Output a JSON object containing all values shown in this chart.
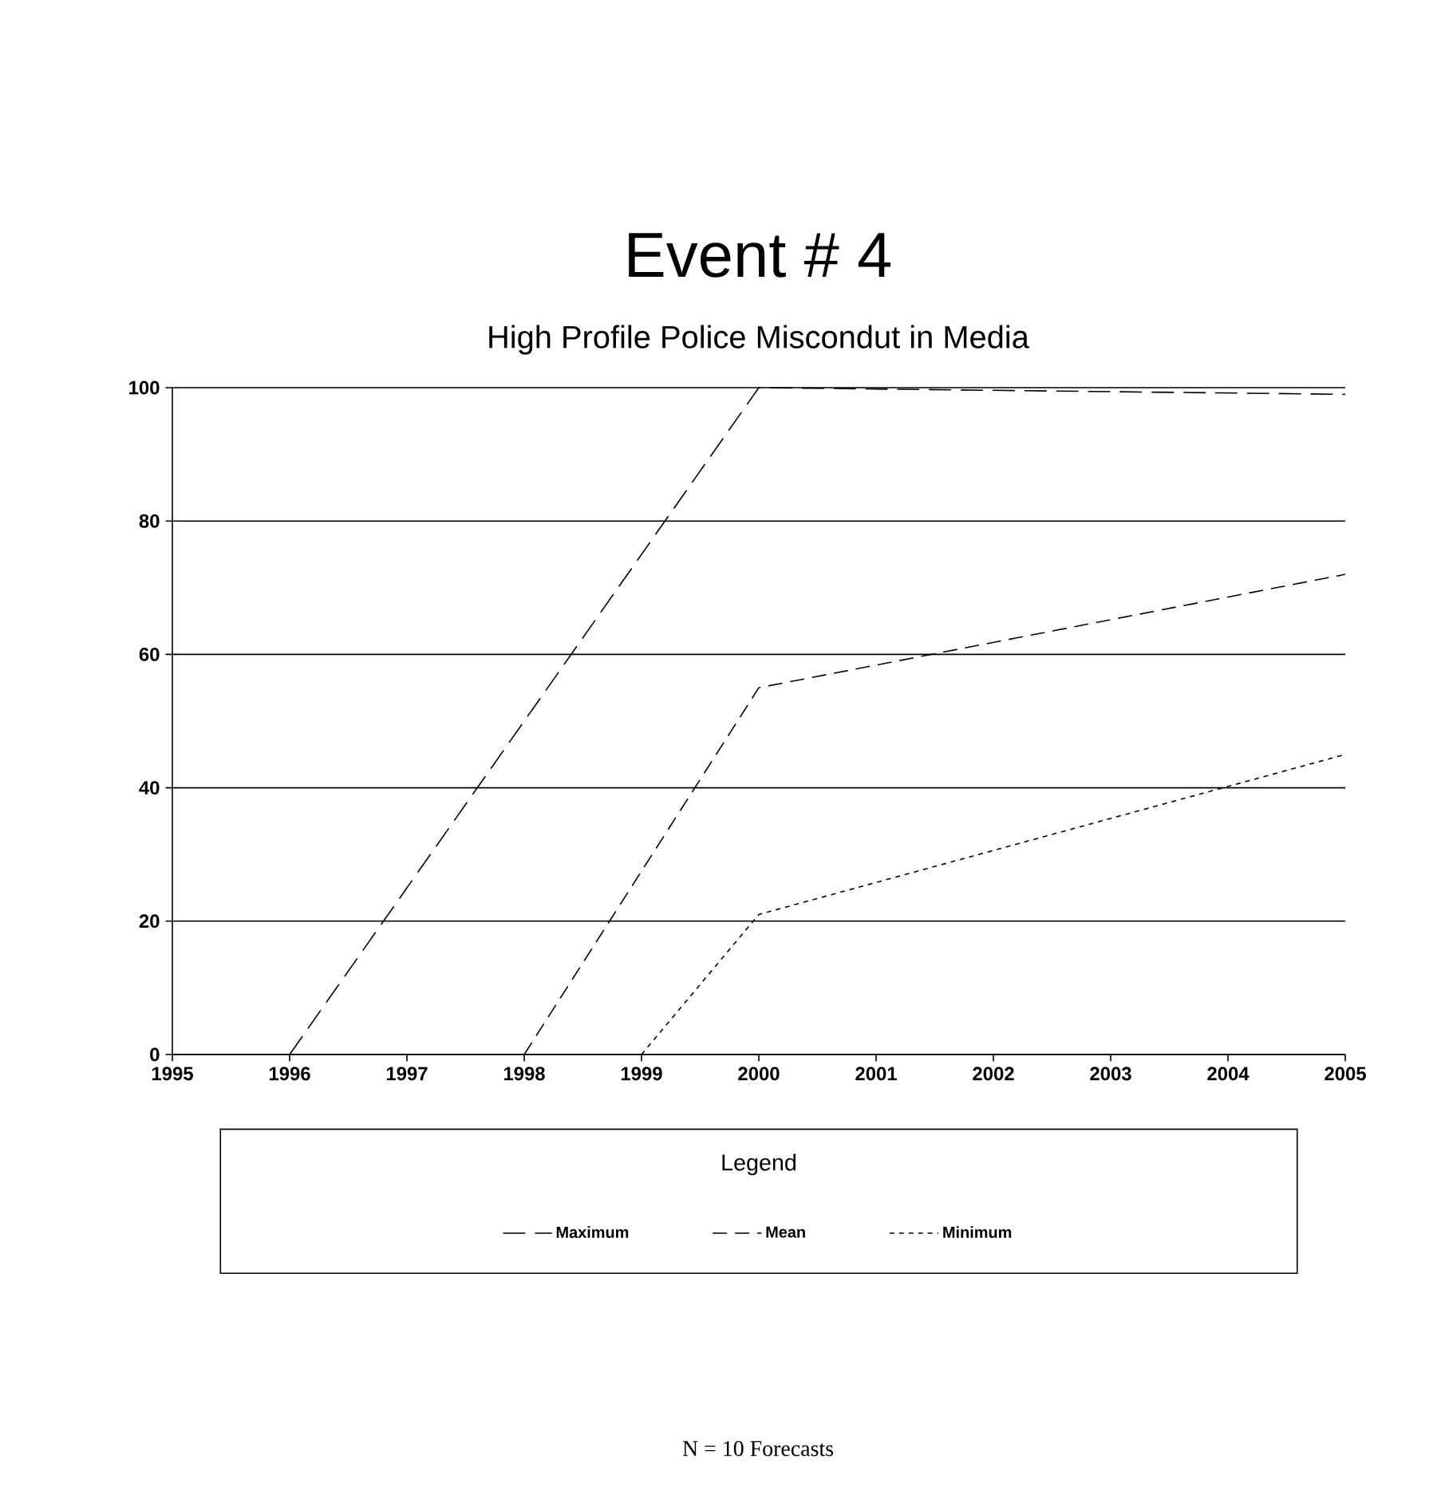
{
  "chart_data": {
    "type": "line",
    "title": "Event # 4",
    "subtitle": "High Profile Police Miscondut in Media",
    "legend_title": "Legend",
    "annotations": [
      "N = 10 Forecasts"
    ],
    "series": [
      {
        "name": "Maximum",
        "color": "#000000",
        "line_style": "dashed",
        "x": [
          1996,
          2000,
          2005
        ],
        "values": [
          0,
          100,
          99
        ]
      },
      {
        "name": "Mean",
        "color": "#000000",
        "line_style": "dashed",
        "x": [
          1998,
          2000,
          2005
        ],
        "values": [
          0,
          55,
          72
        ]
      },
      {
        "name": "Minimum",
        "color": "#000000",
        "line_style": "dotted",
        "x": [
          1999,
          2000,
          2005
        ],
        "values": [
          0,
          21,
          45
        ]
      }
    ],
    "xlim": [
      1995,
      2005
    ],
    "ylim": [
      0,
      100
    ],
    "xticks": [
      1995,
      1996,
      1997,
      1998,
      1999,
      2000,
      2001,
      2002,
      2003,
      2004,
      2005
    ],
    "yticks": [
      0,
      20,
      40,
      60,
      80,
      100
    ],
    "grid": "y",
    "legend": "bottom",
    "marker": "none"
  }
}
